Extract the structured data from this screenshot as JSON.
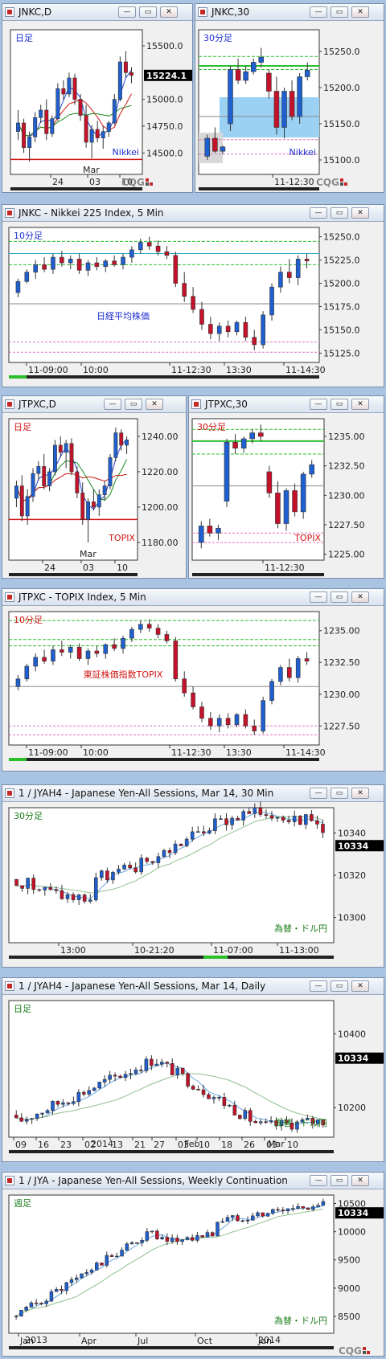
{
  "windows": [
    {
      "id": "w1",
      "title": "JNKC,D",
      "tf": "日足",
      "tfColor": "#1d2fd0",
      "name": "Nikkei",
      "nameColor": "#1d2fd0",
      "yticks": [
        "15500.0",
        "15224.1",
        "15000.0",
        "14750.0",
        "14500.0"
      ],
      "price": "15224.1",
      "xlabels": [
        "24",
        "03",
        "10"
      ],
      "xnote": "Mar"
    },
    {
      "id": "w2",
      "title": "JNKC,30",
      "tf": "30分足",
      "tfColor": "#1d2fd0",
      "name": "Nikkei",
      "nameColor": "#1d2fd0",
      "yticks": [
        "15250.0",
        "15200.0",
        "15150.0",
        "15100.0"
      ],
      "xlabels": [
        "11-12:30"
      ]
    },
    {
      "id": "w3",
      "title": "JNKC - Nikkei 225 Index, 5 Min",
      "tf": "10分足",
      "tfColor": "#1d2fd0",
      "name": "日経平均株価",
      "nameColor": "#1d2fd0",
      "yticks": [
        "15250.0",
        "15225.0",
        "15200.0",
        "15175.0",
        "15150.0",
        "15125.0"
      ],
      "xlabels": [
        "11-09:00",
        "10:00",
        "11-12:30",
        "13:30",
        "11-14:30"
      ]
    },
    {
      "id": "w4",
      "title": "JTPXC,D",
      "tf": "日足",
      "tfColor": "#d01616",
      "name": "TOPIX",
      "nameColor": "#d01616",
      "yticks": [
        "1240.00",
        "1220.00",
        "1200.00",
        "1180.00"
      ],
      "xlabels": [
        "24",
        "03",
        "10"
      ],
      "xnote": "Mar"
    },
    {
      "id": "w5",
      "title": "JTPXC,30",
      "tf": "30分足",
      "tfColor": "#d01616",
      "name": "TOPIX",
      "nameColor": "#d01616",
      "yticks": [
        "1235.00",
        "1232.50",
        "1230.00",
        "1227.50",
        "1225.00"
      ],
      "xlabels": [
        "11-12:30"
      ]
    },
    {
      "id": "w6",
      "title": "JTPXC - TOPIX Index, 5 Min",
      "tf": "10分足",
      "tfColor": "#d01616",
      "name": "東証株価指数TOPIX",
      "nameColor": "#d01616",
      "yticks": [
        "1235.00",
        "1232.50",
        "1230.00",
        "1227.50"
      ],
      "xlabels": [
        "11-09:00",
        "10:00",
        "11-12:30",
        "13:30",
        "11-14:30"
      ]
    },
    {
      "id": "w7",
      "title": "1 / JYAH4 - Japanese Yen-All Sessions, Mar 14, 30 Min",
      "tf": "30分足",
      "tfColor": "#1c7d1c",
      "name": "為替・ドル円",
      "nameColor": "#1c7d1c",
      "yticks": [
        "10340",
        "10334",
        "10320",
        "10300"
      ],
      "price": "10334",
      "xlabels": [
        "13:00",
        "10-21:20",
        "11-07:00",
        "11-13:00"
      ]
    },
    {
      "id": "w8",
      "title": "1 / JYAH4 - Japanese Yen-All Sessions, Mar 14, Daily",
      "tf": "日足",
      "tfColor": "#1c7d1c",
      "name": "為替・ドル円",
      "nameColor": "#1c7d1c",
      "yticks": [
        "10400",
        "10334",
        "10200"
      ],
      "price": "10334",
      "xlabels": [
        "09",
        "16",
        "23",
        "02",
        "13",
        "21",
        "27",
        "03",
        "10",
        "18",
        "26",
        "03",
        "10"
      ],
      "xnote1": "2014",
      "xnote2": "Feb",
      "xnote3": "Mar"
    },
    {
      "id": "w9",
      "title": "1 / JYA - Japanese Yen-All Sessions, Weekly Continuation",
      "tf": "週足",
      "tfColor": "#1c7d1c",
      "name": "為替・ドル円",
      "nameColor": "#1c7d1c",
      "yticks": [
        "10500",
        "10334",
        "10000",
        "9500",
        "9000",
        "8500"
      ],
      "price": "10334",
      "xlabels": [
        "Jan",
        "Apr",
        "Jul",
        "Oct",
        "Jan"
      ],
      "xnote1": "2013",
      "xnote2": "2014"
    }
  ],
  "cqg_logo": "CQG",
  "colors": {
    "up": "#1f5fcf",
    "down": "#c4122a",
    "ma1": "#2a45d8",
    "ma2": "#d01616",
    "ma3": "#1c8a1c",
    "green": "#2bbf2b",
    "pink": "#e070c0",
    "gray": "#8a8a8a"
  },
  "chart_data": [
    {
      "type": "candlestick",
      "title": "JNKC,D",
      "ylim": [
        14300,
        15650
      ],
      "candles": [
        [
          14700,
          14900,
          14620,
          14780
        ],
        [
          14780,
          14820,
          14500,
          14550
        ],
        [
          14550,
          14700,
          14420,
          14650
        ],
        [
          14650,
          14880,
          14600,
          14830
        ],
        [
          14830,
          14950,
          14780,
          14900
        ],
        [
          14900,
          15000,
          14620,
          14680
        ],
        [
          14680,
          14850,
          14650,
          14820
        ],
        [
          14820,
          15150,
          14800,
          15100
        ],
        [
          15100,
          15180,
          15000,
          15050
        ],
        [
          15050,
          15250,
          15020,
          15200
        ],
        [
          15200,
          15240,
          14950,
          15000
        ],
        [
          15000,
          15050,
          14800,
          14850
        ],
        [
          14850,
          14950,
          14550,
          14600
        ],
        [
          14600,
          14760,
          14450,
          14720
        ],
        [
          14720,
          14800,
          14600,
          14640
        ],
        [
          14640,
          14750,
          14540,
          14700
        ],
        [
          14700,
          14800,
          14650,
          14780
        ],
        [
          14780,
          15050,
          14760,
          15000
        ],
        [
          15000,
          15400,
          14980,
          15350
        ],
        [
          15350,
          15450,
          15200,
          15250
        ],
        [
          15250,
          15300,
          15150,
          15224
        ]
      ]
    },
    {
      "type": "candlestick",
      "title": "JNKC,30",
      "ylim": [
        15080,
        15280
      ],
      "candles": [
        [
          15105,
          15135,
          15100,
          15130
        ],
        [
          15130,
          15145,
          15110,
          15112
        ],
        [
          15112,
          15120,
          15108,
          15118
        ],
        [
          15150,
          15230,
          15140,
          15225
        ],
        [
          15225,
          15240,
          15205,
          15210
        ],
        [
          15210,
          15230,
          15205,
          15222
        ],
        [
          15222,
          15240,
          15218,
          15235
        ],
        [
          15235,
          15255,
          15228,
          15242
        ],
        [
          15220,
          15225,
          15185,
          15195
        ],
        [
          15195,
          15215,
          15135,
          15145
        ],
        [
          15145,
          15200,
          15130,
          15195
        ],
        [
          15195,
          15210,
          15155,
          15160
        ],
        [
          15160,
          15220,
          15150,
          15215
        ],
        [
          15215,
          15235,
          15210,
          15224
        ]
      ]
    },
    {
      "type": "candlestick",
      "title": "JNKC - Nikkei 225 Index, 5 Min",
      "ylim": [
        15115,
        15260
      ],
      "candles": [
        [
          15190,
          15205,
          15185,
          15202
        ],
        [
          15202,
          15215,
          15200,
          15212
        ],
        [
          15212,
          15225,
          15205,
          15220
        ],
        [
          15220,
          15228,
          15212,
          15215
        ],
        [
          15215,
          15232,
          15210,
          15228
        ],
        [
          15228,
          15235,
          15218,
          15222
        ],
        [
          15222,
          15230,
          15215,
          15226
        ],
        [
          15226,
          15232,
          15210,
          15214
        ],
        [
          15214,
          15225,
          15208,
          15222
        ],
        [
          15222,
          15228,
          15214,
          15218
        ],
        [
          15218,
          15226,
          15212,
          15224
        ],
        [
          15224,
          15230,
          15218,
          15220
        ],
        [
          15220,
          15232,
          15215,
          15228
        ],
        [
          15228,
          15240,
          15222,
          15236
        ],
        [
          15236,
          15248,
          15232,
          15244
        ],
        [
          15244,
          15250,
          15236,
          15240
        ],
        [
          15240,
          15246,
          15230,
          15234
        ],
        [
          15234,
          15240,
          15226,
          15230
        ],
        [
          15230,
          15234,
          15196,
          15200
        ],
        [
          15200,
          15212,
          15180,
          15186
        ],
        [
          15186,
          15196,
          15168,
          15172
        ],
        [
          15172,
          15180,
          15150,
          15156
        ],
        [
          15156,
          15164,
          15140,
          15146
        ],
        [
          15146,
          15158,
          15138,
          15154
        ],
        [
          15154,
          15160,
          15142,
          15148
        ],
        [
          15148,
          15160,
          15144,
          15158
        ],
        [
          15158,
          15164,
          15138,
          15142
        ],
        [
          15142,
          15150,
          15128,
          15134
        ],
        [
          15134,
          15170,
          15130,
          15166
        ],
        [
          15166,
          15200,
          15160,
          15196
        ],
        [
          15196,
          15218,
          15190,
          15212
        ],
        [
          15212,
          15226,
          15200,
          15206
        ],
        [
          15206,
          15230,
          15198,
          15226
        ],
        [
          15226,
          15232,
          15216,
          15224
        ]
      ]
    },
    {
      "type": "candlestick",
      "title": "JTPXC,D",
      "ylim": [
        1170,
        1250
      ],
      "candles": [
        [
          1205,
          1215,
          1200,
          1212
        ],
        [
          1212,
          1218,
          1192,
          1195
        ],
        [
          1195,
          1210,
          1190,
          1206
        ],
        [
          1206,
          1222,
          1203,
          1219
        ],
        [
          1219,
          1226,
          1215,
          1223
        ],
        [
          1223,
          1230,
          1210,
          1212
        ],
        [
          1212,
          1222,
          1209,
          1220
        ],
        [
          1220,
          1238,
          1218,
          1235
        ],
        [
          1235,
          1240,
          1228,
          1231
        ],
        [
          1231,
          1238,
          1222,
          1236
        ],
        [
          1236,
          1239,
          1218,
          1220
        ],
        [
          1220,
          1223,
          1205,
          1208
        ],
        [
          1208,
          1214,
          1190,
          1193
        ],
        [
          1193,
          1205,
          1180,
          1203
        ],
        [
          1203,
          1210,
          1198,
          1200
        ],
        [
          1200,
          1210,
          1195,
          1207
        ],
        [
          1207,
          1215,
          1204,
          1212
        ],
        [
          1212,
          1230,
          1210,
          1228
        ],
        [
          1228,
          1245,
          1226,
          1242
        ],
        [
          1242,
          1244,
          1232,
          1235
        ],
        [
          1235,
          1240,
          1230,
          1238
        ]
      ]
    },
    {
      "type": "candlestick",
      "title": "JTPXC,30",
      "ylim": [
        1224.5,
        1236.5
      ],
      "candles": [
        [
          1226.0,
          1227.8,
          1225.5,
          1227.4
        ],
        [
          1227.4,
          1228.0,
          1226.5,
          1226.8
        ],
        [
          1226.8,
          1227.5,
          1226.2,
          1227.2
        ],
        [
          1229.5,
          1234.8,
          1229.0,
          1234.5
        ],
        [
          1234.5,
          1235.2,
          1233.5,
          1234.0
        ],
        [
          1234.0,
          1235.0,
          1233.6,
          1234.8
        ],
        [
          1234.8,
          1235.6,
          1234.4,
          1235.3
        ],
        [
          1235.3,
          1236.0,
          1234.6,
          1235.0
        ],
        [
          1232.0,
          1232.5,
          1229.8,
          1230.2
        ],
        [
          1230.2,
          1231.2,
          1227.2,
          1227.6
        ],
        [
          1227.6,
          1230.6,
          1227.0,
          1230.4
        ],
        [
          1230.4,
          1231.0,
          1228.2,
          1228.6
        ],
        [
          1228.6,
          1232.0,
          1228.0,
          1231.8
        ],
        [
          1231.8,
          1233.0,
          1231.5,
          1232.6
        ]
      ]
    },
    {
      "type": "candlestick",
      "title": "JTPXC - TOPIX Index, 5 Min",
      "ylim": [
        1226.0,
        1236.5
      ],
      "candles": [
        [
          1230.6,
          1231.5,
          1230.3,
          1231.2
        ],
        [
          1231.2,
          1232.4,
          1231.0,
          1232.2
        ],
        [
          1232.2,
          1233.2,
          1231.8,
          1232.9
        ],
        [
          1232.9,
          1233.5,
          1232.4,
          1232.6
        ],
        [
          1232.6,
          1233.8,
          1232.3,
          1233.5
        ],
        [
          1233.5,
          1234.2,
          1233.0,
          1233.3
        ],
        [
          1233.3,
          1233.9,
          1232.8,
          1233.7
        ],
        [
          1233.7,
          1234.0,
          1232.6,
          1232.8
        ],
        [
          1232.8,
          1233.6,
          1232.3,
          1233.4
        ],
        [
          1233.4,
          1233.8,
          1232.9,
          1233.2
        ],
        [
          1233.2,
          1234.0,
          1232.8,
          1233.9
        ],
        [
          1233.9,
          1234.4,
          1233.4,
          1233.6
        ],
        [
          1233.6,
          1234.6,
          1233.2,
          1234.4
        ],
        [
          1234.4,
          1235.3,
          1234.1,
          1235.1
        ],
        [
          1235.1,
          1235.8,
          1234.8,
          1235.5
        ],
        [
          1235.5,
          1235.9,
          1234.9,
          1235.2
        ],
        [
          1235.2,
          1235.5,
          1234.4,
          1234.7
        ],
        [
          1234.7,
          1235.0,
          1234.0,
          1234.2
        ],
        [
          1234.2,
          1234.5,
          1231.0,
          1231.2
        ],
        [
          1231.2,
          1231.8,
          1229.8,
          1230.1
        ],
        [
          1230.1,
          1230.6,
          1228.8,
          1229.0
        ],
        [
          1229.0,
          1229.4,
          1227.8,
          1228.1
        ],
        [
          1228.1,
          1228.6,
          1227.2,
          1227.5
        ],
        [
          1227.5,
          1228.4,
          1227.0,
          1228.1
        ],
        [
          1228.1,
          1228.5,
          1227.3,
          1227.6
        ],
        [
          1227.6,
          1228.5,
          1227.4,
          1228.4
        ],
        [
          1228.4,
          1228.8,
          1227.3,
          1227.5
        ],
        [
          1227.5,
          1228.0,
          1226.8,
          1227.1
        ],
        [
          1227.1,
          1229.8,
          1226.9,
          1229.5
        ],
        [
          1229.5,
          1231.2,
          1229.2,
          1231.0
        ],
        [
          1231.0,
          1232.3,
          1230.7,
          1232.1
        ],
        [
          1232.1,
          1232.8,
          1231.0,
          1231.3
        ],
        [
          1231.3,
          1233.0,
          1230.9,
          1232.8
        ],
        [
          1232.8,
          1233.3,
          1232.3,
          1232.6
        ]
      ]
    },
    {
      "type": "candlestick",
      "title": "1 / JYAH4 - Japanese Yen-All Sessions, Mar 14, 30 Min",
      "ylim": [
        10288,
        10352
      ],
      "series_count": 55
    },
    {
      "type": "candlestick",
      "title": "1 / JYAH4 - Japanese Yen-All Sessions, Mar 14, Daily",
      "ylim": [
        10120,
        10490
      ],
      "series_count": 60
    },
    {
      "type": "candlestick",
      "title": "1 / JYA - Japanese Yen-All Sessions, Weekly Continuation",
      "ylim": [
        8200,
        10650
      ],
      "series_count": 62
    }
  ]
}
